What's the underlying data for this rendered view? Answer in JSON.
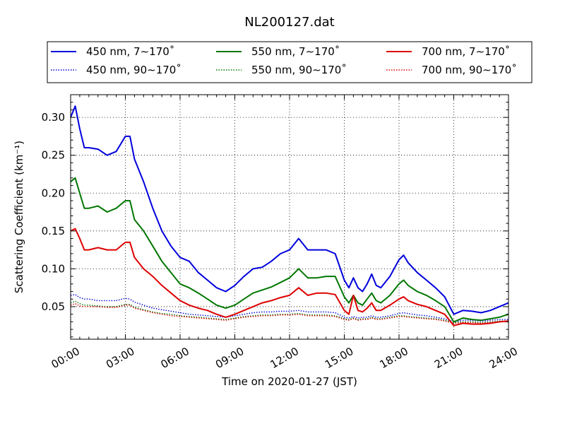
{
  "chart_data": {
    "type": "line",
    "title": "NL200127.dat",
    "xlabel": "Time on 2020-01-27 (JST)",
    "ylabel": "Scattering Coefficient (km⁻¹)",
    "xlim": [
      0,
      24
    ],
    "ylim": [
      0.007,
      0.33
    ],
    "x_ticks": [
      0,
      3,
      6,
      9,
      12,
      15,
      18,
      21,
      24
    ],
    "x_tick_labels": [
      "00:00",
      "03:00",
      "06:00",
      "09:00",
      "12:00",
      "15:00",
      "18:00",
      "21:00",
      "24:00"
    ],
    "y_ticks": [
      0.05,
      0.1,
      0.15,
      0.2,
      0.25,
      0.3
    ],
    "y_tick_labels": [
      "0.05",
      "0.10",
      "0.15",
      "0.20",
      "0.25",
      "0.30"
    ],
    "grid": true,
    "legend_position": "top",
    "x": [
      0.0,
      0.25,
      0.5,
      0.75,
      1.0,
      1.5,
      2.0,
      2.5,
      3.0,
      3.25,
      3.5,
      4.0,
      4.5,
      5.0,
      5.5,
      6.0,
      6.5,
      7.0,
      7.5,
      8.0,
      8.5,
      9.0,
      9.5,
      10.0,
      10.5,
      11.0,
      11.5,
      12.0,
      12.5,
      13.0,
      13.5,
      14.0,
      14.5,
      15.0,
      15.25,
      15.5,
      15.75,
      16.0,
      16.25,
      16.5,
      16.75,
      17.0,
      17.5,
      18.0,
      18.25,
      18.5,
      19.0,
      19.5,
      20.0,
      20.5,
      21.0,
      21.5,
      22.0,
      22.5,
      23.0,
      23.5,
      24.0
    ],
    "series": [
      {
        "name": "450 nm, 7∼170˚",
        "style": "solid",
        "color": "#0000dd",
        "values": [
          0.3,
          0.315,
          0.285,
          0.26,
          0.26,
          0.258,
          0.25,
          0.255,
          0.275,
          0.275,
          0.245,
          0.215,
          0.18,
          0.15,
          0.13,
          0.115,
          0.11,
          0.095,
          0.085,
          0.075,
          0.07,
          0.078,
          0.09,
          0.1,
          0.102,
          0.11,
          0.12,
          0.125,
          0.14,
          0.125,
          0.125,
          0.125,
          0.12,
          0.085,
          0.075,
          0.088,
          0.075,
          0.07,
          0.08,
          0.093,
          0.078,
          0.075,
          0.09,
          0.112,
          0.118,
          0.108,
          0.095,
          0.085,
          0.075,
          0.063,
          0.04,
          0.045,
          0.044,
          0.042,
          0.045,
          0.05,
          0.055
        ]
      },
      {
        "name": "450 nm, 90∼170˚",
        "style": "dotted",
        "color": "#0000dd",
        "values": [
          0.065,
          0.066,
          0.062,
          0.06,
          0.06,
          0.058,
          0.058,
          0.058,
          0.061,
          0.06,
          0.056,
          0.052,
          0.048,
          0.046,
          0.044,
          0.042,
          0.04,
          0.039,
          0.038,
          0.037,
          0.036,
          0.038,
          0.04,
          0.042,
          0.043,
          0.043,
          0.044,
          0.044,
          0.045,
          0.043,
          0.043,
          0.043,
          0.042,
          0.036,
          0.035,
          0.037,
          0.035,
          0.036,
          0.036,
          0.038,
          0.036,
          0.036,
          0.038,
          0.041,
          0.042,
          0.041,
          0.039,
          0.038,
          0.036,
          0.034,
          0.03,
          0.032,
          0.032,
          0.031,
          0.032,
          0.033,
          0.033
        ]
      },
      {
        "name": "550 nm, 7∼170˚",
        "style": "solid",
        "color": "#007700",
        "values": [
          0.215,
          0.22,
          0.2,
          0.18,
          0.18,
          0.183,
          0.175,
          0.18,
          0.19,
          0.19,
          0.165,
          0.15,
          0.13,
          0.11,
          0.095,
          0.08,
          0.075,
          0.068,
          0.06,
          0.052,
          0.048,
          0.052,
          0.06,
          0.068,
          0.072,
          0.076,
          0.082,
          0.088,
          0.1,
          0.088,
          0.088,
          0.09,
          0.09,
          0.063,
          0.055,
          0.065,
          0.055,
          0.052,
          0.06,
          0.068,
          0.058,
          0.055,
          0.065,
          0.08,
          0.085,
          0.078,
          0.07,
          0.065,
          0.058,
          0.05,
          0.03,
          0.035,
          0.033,
          0.032,
          0.034,
          0.036,
          0.04
        ]
      },
      {
        "name": "550 nm, 90∼170˚",
        "style": "dotted",
        "color": "#007700",
        "values": [
          0.055,
          0.057,
          0.054,
          0.052,
          0.052,
          0.051,
          0.05,
          0.05,
          0.053,
          0.053,
          0.049,
          0.046,
          0.043,
          0.041,
          0.04,
          0.038,
          0.037,
          0.036,
          0.035,
          0.034,
          0.033,
          0.035,
          0.037,
          0.038,
          0.039,
          0.039,
          0.04,
          0.04,
          0.041,
          0.039,
          0.039,
          0.039,
          0.038,
          0.034,
          0.033,
          0.035,
          0.033,
          0.034,
          0.034,
          0.036,
          0.034,
          0.034,
          0.036,
          0.038,
          0.038,
          0.037,
          0.036,
          0.035,
          0.034,
          0.032,
          0.029,
          0.03,
          0.03,
          0.029,
          0.03,
          0.031,
          0.031
        ]
      },
      {
        "name": "700 nm, 7∼170˚",
        "style": "solid",
        "color": "#dd0000",
        "values": [
          0.15,
          0.153,
          0.14,
          0.125,
          0.125,
          0.128,
          0.125,
          0.125,
          0.135,
          0.135,
          0.115,
          0.1,
          0.09,
          0.078,
          0.068,
          0.058,
          0.052,
          0.048,
          0.045,
          0.04,
          0.036,
          0.04,
          0.045,
          0.05,
          0.055,
          0.058,
          0.062,
          0.065,
          0.075,
          0.065,
          0.068,
          0.068,
          0.066,
          0.045,
          0.04,
          0.065,
          0.045,
          0.043,
          0.048,
          0.055,
          0.045,
          0.045,
          0.052,
          0.06,
          0.063,
          0.058,
          0.053,
          0.05,
          0.045,
          0.04,
          0.025,
          0.028,
          0.027,
          0.027,
          0.028,
          0.03,
          0.031
        ]
      },
      {
        "name": "700 nm, 90∼170˚",
        "style": "dotted",
        "color": "#dd0000",
        "values": [
          0.052,
          0.054,
          0.051,
          0.05,
          0.05,
          0.05,
          0.049,
          0.049,
          0.052,
          0.052,
          0.048,
          0.045,
          0.042,
          0.04,
          0.038,
          0.037,
          0.036,
          0.035,
          0.034,
          0.033,
          0.032,
          0.034,
          0.036,
          0.037,
          0.038,
          0.038,
          0.039,
          0.039,
          0.04,
          0.038,
          0.038,
          0.038,
          0.037,
          0.033,
          0.032,
          0.034,
          0.032,
          0.033,
          0.033,
          0.035,
          0.033,
          0.033,
          0.035,
          0.037,
          0.037,
          0.036,
          0.035,
          0.034,
          0.033,
          0.031,
          0.028,
          0.029,
          0.029,
          0.028,
          0.029,
          0.03,
          0.03
        ]
      }
    ]
  }
}
